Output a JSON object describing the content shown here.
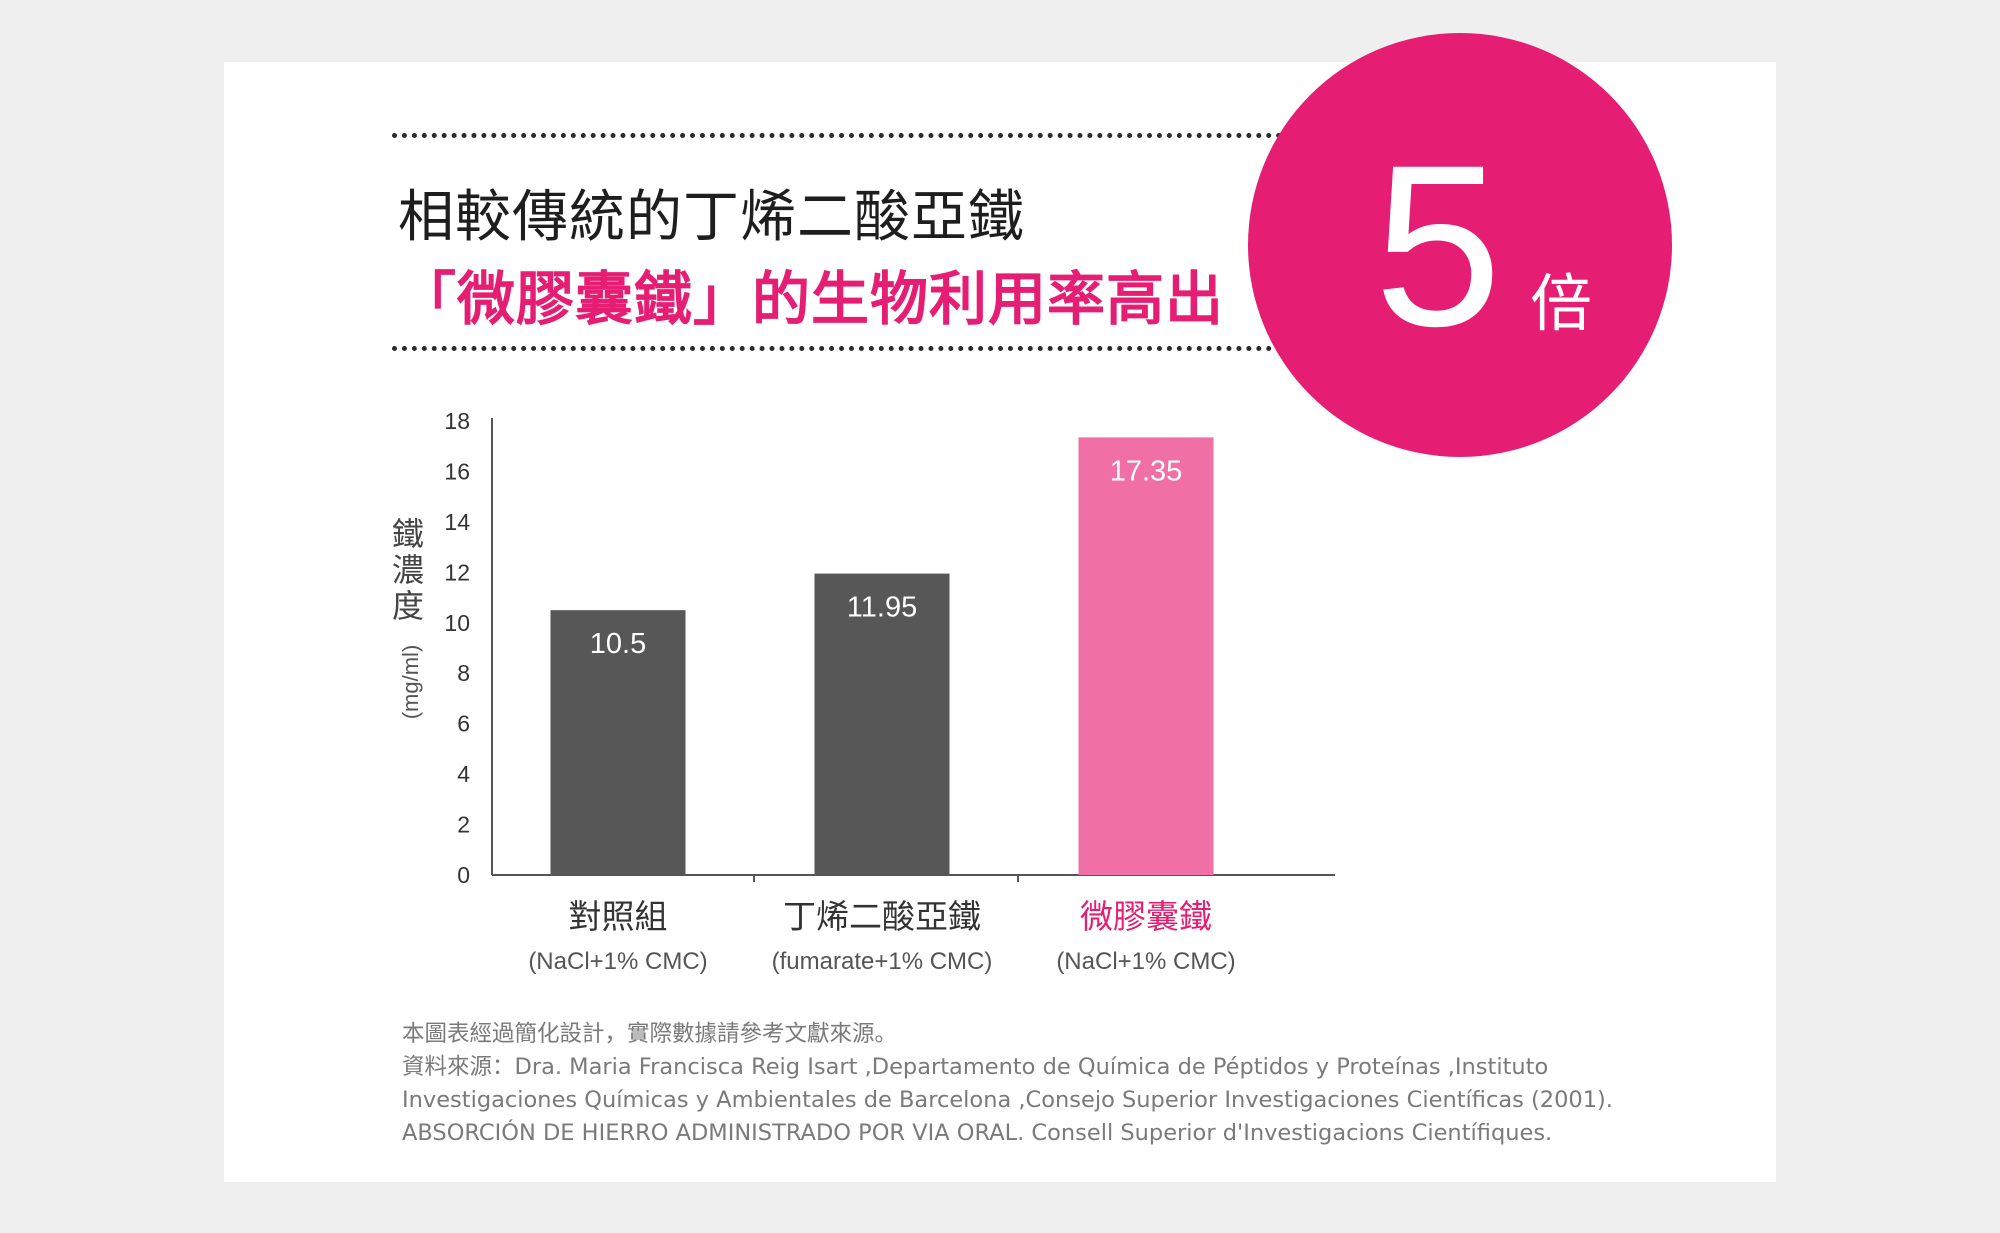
{
  "header": {
    "line1": "相較傳統的丁烯二酸亞鐵",
    "line2": "「微膠囊鐵」的生物利用率高出"
  },
  "badge": {
    "number": "5",
    "unit": "倍"
  },
  "colors": {
    "accent": "#e61e73",
    "bar_dark": "#575757",
    "bar_pink": "#f070a5",
    "axis": "#555555",
    "footnote": "#7a7a7a"
  },
  "chart_data": {
    "type": "bar",
    "ylabel": "鐵濃度",
    "ylabel_unit": "(mg/ml)",
    "ylim": [
      0,
      18
    ],
    "yticks": [
      0,
      2,
      4,
      6,
      8,
      10,
      12,
      14,
      16,
      18
    ],
    "grid": false,
    "categories": [
      "對照組",
      "丁烯二酸亞鐵",
      "微膠囊鐵"
    ],
    "subcategories": [
      "(NaCl+1% CMC)",
      "(fumarate+1% CMC)",
      "(NaCl+1% CMC)"
    ],
    "values": [
      10.5,
      11.95,
      17.35
    ],
    "value_labels": [
      "10.5",
      "11.95",
      "17.35"
    ],
    "highlight_index": 2
  },
  "footnote": {
    "line1": "本圖表經過簡化設計，實際數據請參考文獻來源。",
    "line2": "資料來源：Dra. Maria Francisca Reig Isart ,Departamento de Química de Péptidos y Proteínas ,Instituto",
    "line3": "Investigaciones Químicas y Ambientales de Barcelona ,Consejo Superior Investigaciones Científicas (2001).",
    "line4": "ABSORCIÓN DE HIERRO ADMINISTRADO POR VIA ORAL. Consell Superior d'Investigacions Científiques."
  }
}
